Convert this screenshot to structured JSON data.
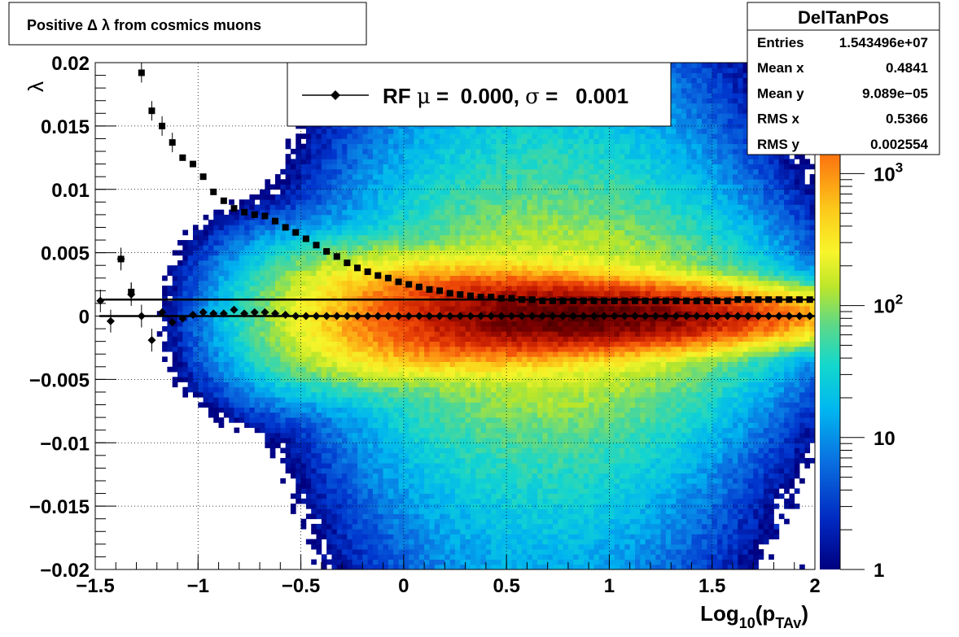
{
  "chart_data": {
    "type": "heatmap",
    "title": "Positive Δ λ from cosmics muons",
    "xlabel": "Log",
    "xlabel_sub": "10",
    "xlabel_paren": "(p",
    "xlabel_sub2": "TAv",
    "xlabel_close": ")",
    "ylabel": "λ",
    "xlim": [
      -1.5,
      2.0
    ],
    "ylim": [
      -0.02,
      0.02
    ],
    "zlim": [
      1,
      5000
    ],
    "zscale": "log",
    "grid": true,
    "x_ticks": [
      "−1.5",
      "−1",
      "−0.5",
      "0",
      "0.5",
      "1",
      "1.5",
      "2"
    ],
    "x_tick_values": [
      -1.5,
      -1,
      -0.5,
      0,
      0.5,
      1,
      1.5,
      2
    ],
    "y_ticks": [
      "0.02",
      "0.015",
      "0.01",
      "0.005",
      "0",
      "−0.005",
      "−0.01",
      "−0.015",
      "−0.02"
    ],
    "y_tick_values": [
      0.02,
      0.015,
      0.01,
      0.005,
      0,
      -0.005,
      -0.01,
      -0.015,
      -0.02
    ],
    "z_ticks": [
      {
        "value": 1,
        "base": "1",
        "exp": ""
      },
      {
        "value": 10,
        "base": "10",
        "exp": ""
      },
      {
        "value": 100,
        "base": "10",
        "exp": "2"
      },
      {
        "value": 1000,
        "base": "10",
        "exp": "3"
      }
    ],
    "colormap": [
      "#000080",
      "#0033cc",
      "#0a6fe0",
      "#00b4f0",
      "#13d5d0",
      "#5ad88a",
      "#b8e62a",
      "#f5f52a",
      "#fbd01a",
      "#fc8a10",
      "#f04a08",
      "#c21a00",
      "#7a0000",
      "#3a0000"
    ],
    "legend": {
      "position": "top-center",
      "label_prefix": "RF ",
      "mu_symbol": "μ",
      "eq1": " =  0.000, ",
      "sigma_symbol": "σ",
      "eq2": " =   0.001"
    },
    "stats": {
      "title": "DelTanPos",
      "rows": [
        {
          "label": "Entries",
          "value": "1.543496e+07"
        },
        {
          "label": "Mean x",
          "value": "0.4841"
        },
        {
          "label": "Mean y",
          "value": "9.089e−05"
        },
        {
          "label": "RMS x",
          "value": "0.5366"
        },
        {
          "label": "RMS y",
          "value": "0.002554"
        }
      ]
    },
    "mean_series": {
      "name": "RF",
      "marker": "diamond",
      "x": [
        -1.475,
        -1.425,
        -1.375,
        -1.325,
        -1.275,
        -1.225,
        -1.175,
        -1.125,
        -1.075,
        -1.025,
        -0.975,
        -0.925,
        -0.875,
        -0.825,
        -0.775,
        -0.725,
        -0.675,
        -0.625,
        -0.575,
        -0.525,
        -0.475,
        -0.425,
        -0.375,
        -0.325,
        -0.275,
        -0.225,
        -0.175,
        -0.125,
        -0.075,
        -0.025,
        0.025,
        0.075,
        0.125,
        0.175,
        0.225,
        0.275,
        0.325,
        0.375,
        0.425,
        0.475,
        0.525,
        0.575,
        0.625,
        0.675,
        0.725,
        0.775,
        0.825,
        0.875,
        0.925,
        0.975,
        1.025,
        1.075,
        1.125,
        1.175,
        1.225,
        1.275,
        1.325,
        1.375,
        1.425,
        1.475,
        1.525,
        1.575,
        1.625,
        1.675,
        1.725,
        1.775,
        1.825,
        1.875,
        1.925,
        1.975
      ],
      "y": [
        0.0012,
        -0.0004,
        0.0045,
        0.0017,
        0.0,
        -0.0019,
        0.0003,
        -0.0005,
        -0.0002,
        0.0001,
        0.0003,
        0.0002,
        0.0002,
        0.0005,
        0.0002,
        0.0003,
        0.0003,
        0.0002,
        0.0001,
        0.0,
        0.0,
        0.0,
        0.0,
        0.0,
        0.0,
        0.0,
        0.0,
        0.0,
        0.0,
        0.0,
        0.0,
        0.0,
        0.0,
        0.0,
        0.0,
        0.0,
        0.0,
        0.0,
        0.0,
        0.0,
        0.0,
        0.0,
        0.0,
        0.0,
        0.0,
        0.0,
        0.0,
        0.0,
        0.0,
        0.0,
        0.0,
        0.0,
        0.0,
        0.0,
        0.0,
        0.0,
        0.0,
        0.0,
        0.0,
        0.0,
        0.0,
        0.0,
        0.0,
        0.0,
        0.0,
        0.0,
        0.0,
        0.0,
        0.0,
        0.0
      ]
    },
    "rms_series": {
      "marker": "square",
      "x": [
        -1.375,
        -1.325,
        -1.275,
        -1.225,
        -1.175,
        -1.125,
        -1.075,
        -1.025,
        -0.975,
        -0.925,
        -0.875,
        -0.825,
        -0.775,
        -0.725,
        -0.675,
        -0.625,
        -0.575,
        -0.525,
        -0.475,
        -0.425,
        -0.375,
        -0.325,
        -0.275,
        -0.225,
        -0.175,
        -0.125,
        -0.075,
        -0.025,
        0.025,
        0.075,
        0.125,
        0.175,
        0.225,
        0.275,
        0.325,
        0.375,
        0.425,
        0.475,
        0.525,
        0.575,
        0.625,
        0.675,
        0.725,
        0.775,
        0.825,
        0.875,
        0.925,
        0.975,
        1.025,
        1.075,
        1.125,
        1.175,
        1.225,
        1.275,
        1.325,
        1.375,
        1.425,
        1.475,
        1.525,
        1.575,
        1.625,
        1.675,
        1.725,
        1.775,
        1.825,
        1.875,
        1.925,
        1.975
      ],
      "y": [
        0.0045,
        0.0019,
        0.0192,
        0.0162,
        0.015,
        0.0137,
        0.0125,
        0.012,
        0.011,
        0.0098,
        0.0091,
        0.0085,
        0.0082,
        0.008,
        0.0079,
        0.0075,
        0.007,
        0.0066,
        0.0061,
        0.0056,
        0.0051,
        0.0047,
        0.0042,
        0.0038,
        0.0035,
        0.0032,
        0.003,
        0.0027,
        0.0025,
        0.0023,
        0.0021,
        0.002,
        0.0018,
        0.0017,
        0.0016,
        0.0015,
        0.0015,
        0.0014,
        0.0014,
        0.0013,
        0.0013,
        0.0012,
        0.0012,
        0.0012,
        0.0012,
        0.0012,
        0.0012,
        0.0012,
        0.0012,
        0.0012,
        0.0012,
        0.0012,
        0.0012,
        0.0012,
        0.0012,
        0.0012,
        0.0012,
        0.0012,
        0.0012,
        0.0012,
        0.0013,
        0.0013,
        0.0013,
        0.0013,
        0.0013,
        0.0013,
        0.0013,
        0.0013
      ]
    },
    "fit_lines": [
      {
        "name": "mean-fit",
        "y": 0.0
      },
      {
        "name": "sigma-fit",
        "y": 0.0013
      }
    ]
  }
}
